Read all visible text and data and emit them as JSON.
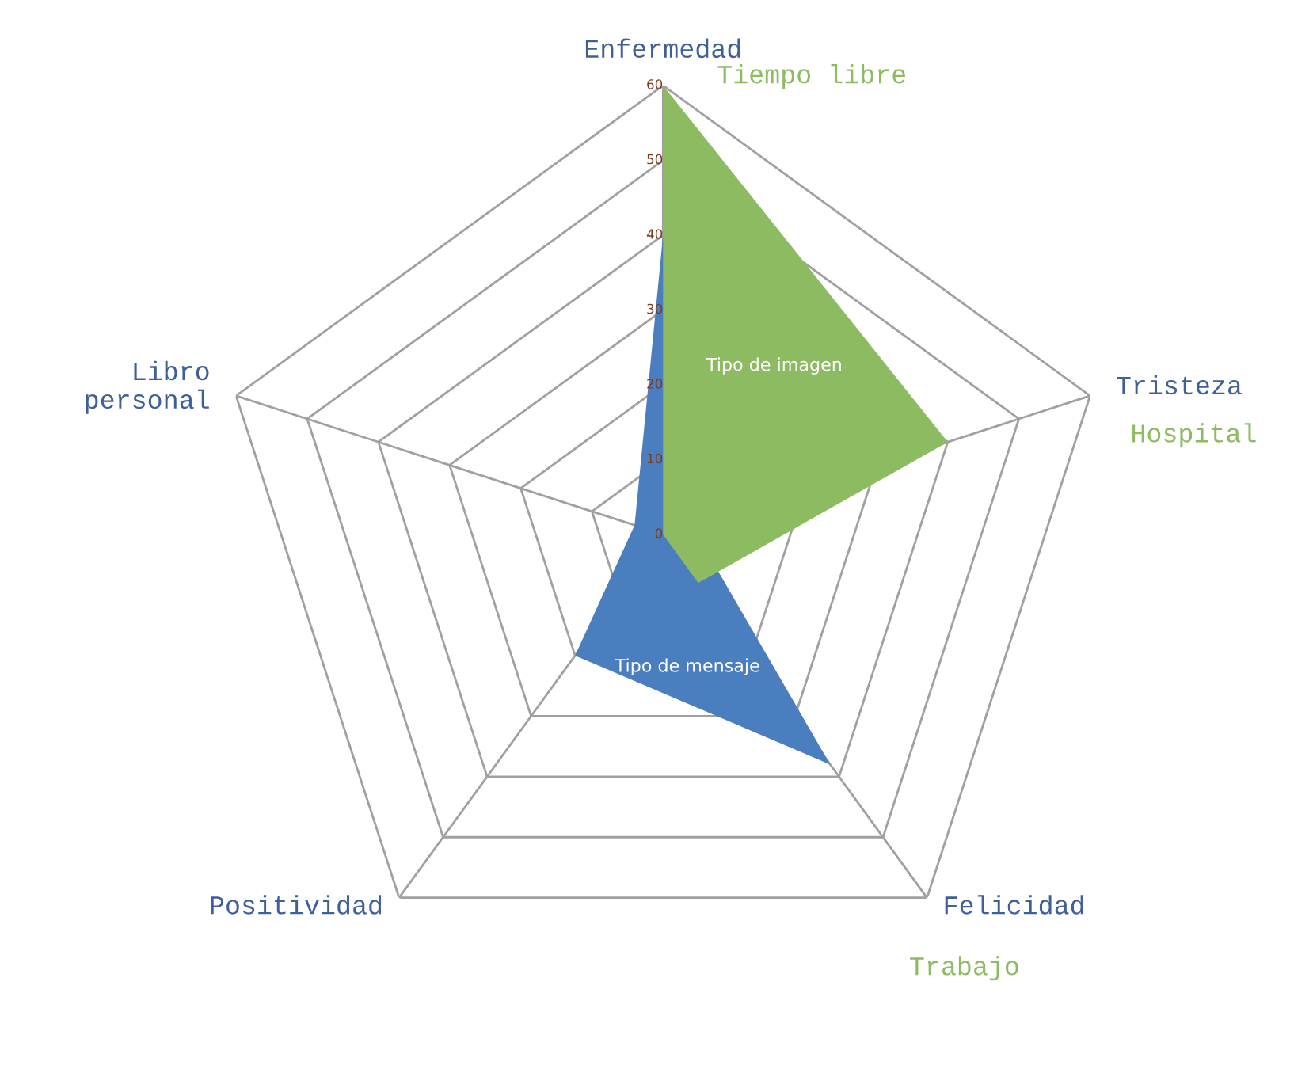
{
  "chart_data": {
    "type": "radar",
    "categories": [
      "Enfermedad",
      "Tristeza",
      "Felicidad",
      "Positividad",
      "Libro\npersonal"
    ],
    "series": [
      {
        "name": "Tipo de mensaje",
        "color": "#4a7ebf",
        "values": [
          40,
          4,
          38,
          20,
          4
        ]
      },
      {
        "name": "Tipo de imagen",
        "color": "#8dbb62",
        "values": [
          60,
          40,
          8,
          0,
          0
        ]
      }
    ],
    "ylim": [
      0,
      60
    ],
    "yticks": [
      0,
      10,
      20,
      30,
      40,
      50,
      60
    ],
    "annotations": [
      "Tiempo libre",
      "Hospital",
      "Trabajo"
    ],
    "legend": false
  }
}
